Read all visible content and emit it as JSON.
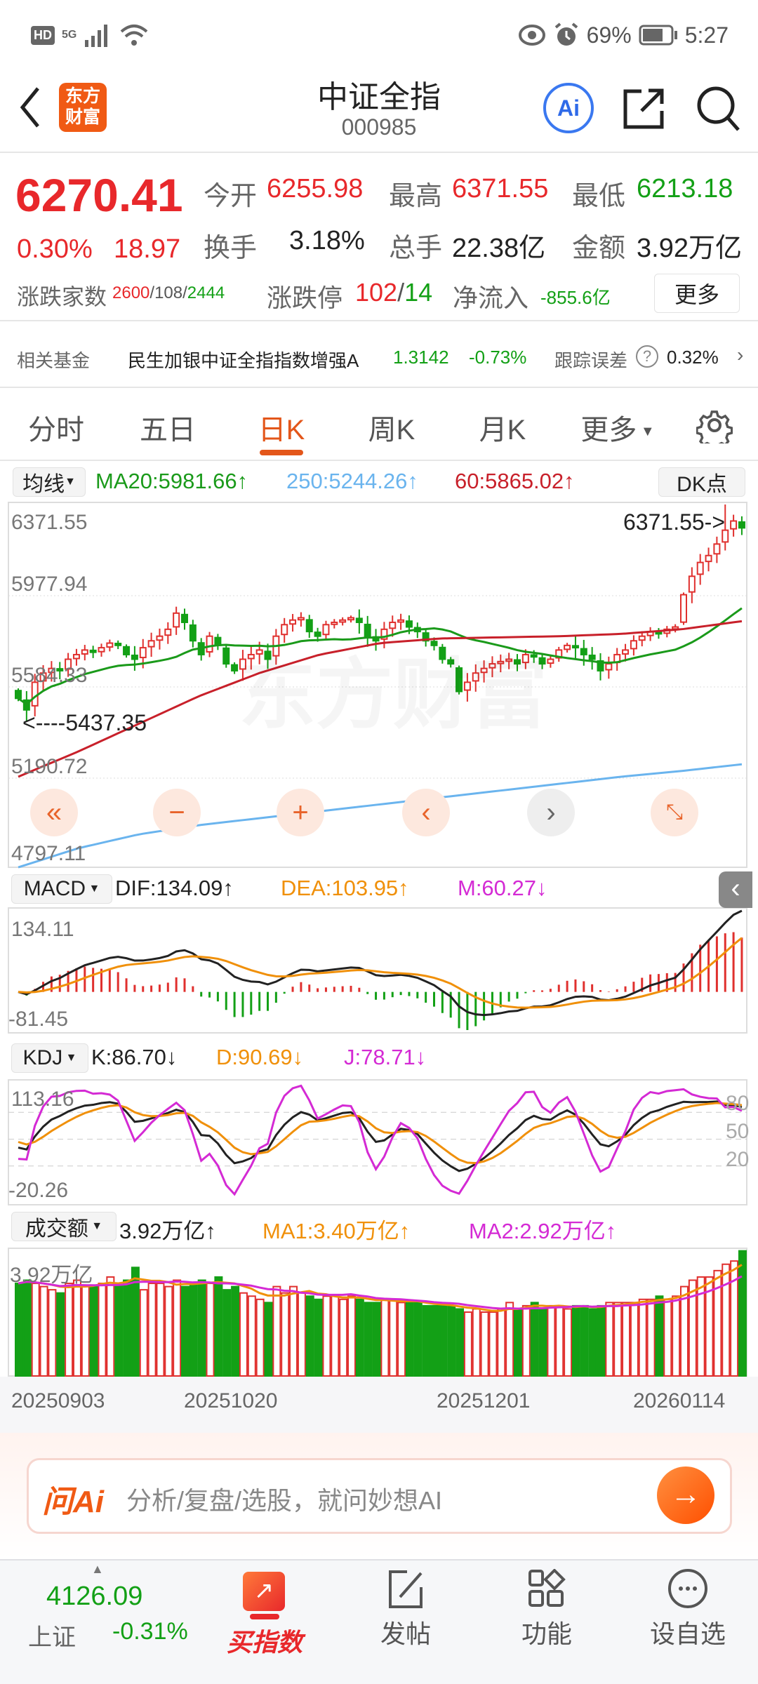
{
  "status_bar": {
    "left": [
      "HD",
      "5G"
    ],
    "eye": "eye-icon",
    "battery": "69%",
    "time": "5:27"
  },
  "header": {
    "logo": "东方财富",
    "title": "中证全指",
    "code": "000985"
  },
  "quote": {
    "price": "6270.41",
    "pct": "0.30%",
    "change": "18.97",
    "open_label": "今开",
    "open": "6255.98",
    "high_label": "最高",
    "high": "6371.55",
    "low_label": "最低",
    "low": "6213.18",
    "turnover_label": "换手",
    "turnover": "3.18%",
    "volume_label": "总手",
    "volume": "22.38亿",
    "amount_label": "金额",
    "amount": "3.92万亿",
    "breadth_label": "涨跌家数",
    "breadth_up": "2600",
    "breadth_flat": "108",
    "breadth_down": "2444",
    "limit_label": "涨跌停",
    "limit_up": "102",
    "limit_down": "14",
    "netflow_label": "净流入",
    "netflow": "-855.6亿",
    "more": "更多"
  },
  "fund": {
    "label": "相关基金",
    "name": "民生加银中证全指指数增强A",
    "nav": "1.3142",
    "pct": "-0.73%",
    "error_label": "跟踪误差",
    "error": "0.32%"
  },
  "tabs": [
    {
      "label": "分时"
    },
    {
      "label": "五日"
    },
    {
      "label": "日K",
      "active": true
    },
    {
      "label": "周K"
    },
    {
      "label": "月K"
    },
    {
      "label": "更多"
    }
  ],
  "ma_legend": {
    "selector": "均线",
    "ma20": "MA20:5981.66↑",
    "ma250": "250:5244.26↑",
    "ma60": "60:5865.02↑",
    "dk": "DK点"
  },
  "main_chart": {
    "y_ticks": [
      "6371.55",
      "5977.94",
      "5584.33",
      "5190.72",
      "4797.11"
    ],
    "ylim": [
      4797.11,
      6371.55
    ],
    "high_mark": "6371.55->",
    "low_mark": "<----5437.35",
    "watermark": "东方财富",
    "colors": {
      "up": "#e0302e",
      "down": "#13a016",
      "ma20": "#1a9a1a",
      "ma250": "#6ab4ee",
      "ma60": "#c8202a"
    },
    "closes": [
      5530,
      5480,
      5600,
      5640,
      5660,
      5650,
      5700,
      5720,
      5740,
      5730,
      5750,
      5770,
      5760,
      5720,
      5700,
      5750,
      5780,
      5800,
      5830,
      5900,
      5860,
      5780,
      5720,
      5800,
      5760,
      5680,
      5650,
      5700,
      5720,
      5740,
      5700,
      5800,
      5850,
      5870,
      5880,
      5820,
      5800,
      5850,
      5860,
      5870,
      5880,
      5860,
      5800,
      5780,
      5830,
      5860,
      5870,
      5840,
      5820,
      5780,
      5760,
      5700,
      5680,
      5560,
      5600,
      5640,
      5660,
      5680,
      5690,
      5700,
      5680,
      5720,
      5710,
      5680,
      5700,
      5740,
      5760,
      5750,
      5720,
      5700,
      5650,
      5680,
      5720,
      5740,
      5780,
      5800,
      5820,
      5810,
      5830,
      5840,
      5980,
      6060,
      6120,
      6150,
      6200,
      6260,
      6300,
      6270
    ],
    "ma60": [
      5190,
      5300,
      5420,
      5540,
      5640,
      5720,
      5770,
      5790,
      5795,
      5800,
      5810,
      5830,
      5865
    ],
    "ma250": [
      4797,
      4880,
      4940,
      4980,
      5010,
      5040,
      5070,
      5100,
      5130,
      5160,
      5190,
      5215,
      5244
    ]
  },
  "macd": {
    "selector": "MACD",
    "dif": "DIF:134.09↑",
    "dea": "DEA:103.95↑",
    "m": "M:60.27↓",
    "y_top": "134.11",
    "y_bottom": "-81.45"
  },
  "kdj": {
    "selector": "KDJ",
    "k": "K:86.70↓",
    "d": "D:90.69↓",
    "j": "J:78.71↓",
    "y_top": "113.16",
    "y_bottom": "-20.26",
    "levels": [
      "80",
      "50",
      "20"
    ]
  },
  "amount_chart": {
    "selector": "成交额",
    "value": "3.92万亿↑",
    "ma1": "MA1:3.40万亿↑",
    "ma2": "MA2:2.92万亿↑",
    "y_top": "3.92万亿",
    "values": [
      2.9,
      3.0,
      2.9,
      2.8,
      2.7,
      2.6,
      2.9,
      3.0,
      2.8,
      2.8,
      2.9,
      3.1,
      2.9,
      3.0,
      3.4,
      2.7,
      2.9,
      2.9,
      2.8,
      3.0,
      2.8,
      2.9,
      3.0,
      2.9,
      3.1,
      2.7,
      2.8,
      2.6,
      2.5,
      2.4,
      2.3,
      2.8,
      2.6,
      2.8,
      2.6,
      2.5,
      2.4,
      2.5,
      2.5,
      2.4,
      2.5,
      2.4,
      2.3,
      2.3,
      2.4,
      2.4,
      2.3,
      2.3,
      2.3,
      2.2,
      2.2,
      2.2,
      2.2,
      2.1,
      2.0,
      2.1,
      2.0,
      2.0,
      2.1,
      2.3,
      2.1,
      2.2,
      2.3,
      2.1,
      2.2,
      2.2,
      2.1,
      2.2,
      2.2,
      2.1,
      2.2,
      2.3,
      2.3,
      2.3,
      2.3,
      2.4,
      2.4,
      2.5,
      2.4,
      2.5,
      2.8,
      3.0,
      3.1,
      3.1,
      3.3,
      3.5,
      3.6,
      3.92
    ]
  },
  "dates": [
    "20250903",
    "20251020",
    "20251201",
    "20260114"
  ],
  "ask_ai": {
    "logo": "问Ai",
    "placeholder": "分析/复盘/选股，就问妙想AI"
  },
  "bottom_nav": {
    "index_value": "4126.09",
    "index_name": "上证",
    "index_pct": "-0.31%",
    "buy": "买指数",
    "post": "发帖",
    "functions": "功能",
    "watchlist": "设自选"
  }
}
